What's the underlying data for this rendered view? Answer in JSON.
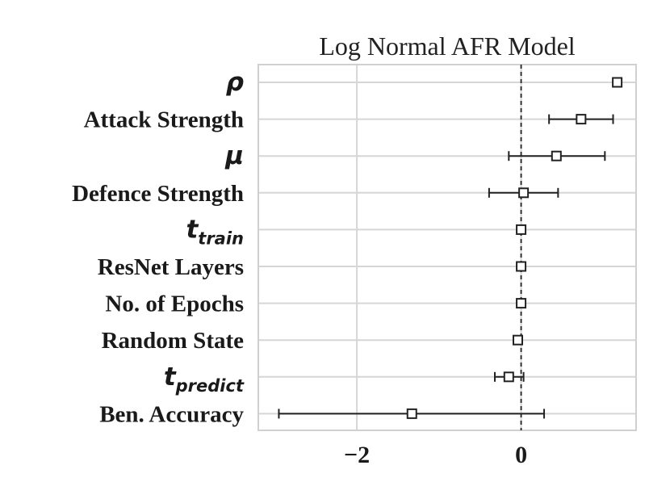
{
  "chart_data": {
    "type": "scatter",
    "title": "Log Normal AFR Model",
    "xlabel": "",
    "ylabel": "",
    "xlim": [
      -3.2,
      1.4
    ],
    "xticks": [
      -2,
      0
    ],
    "xtick_labels": [
      "−2",
      "0"
    ],
    "grid": true,
    "reference_line_x": 0,
    "marker": "open-square",
    "points": [
      {
        "label": "ρ",
        "label_main": "ρ",
        "label_sub": "",
        "math": true,
        "estimate": 1.17,
        "ci_low": null,
        "ci_high": null
      },
      {
        "label": "Attack Strength",
        "label_main": "Attack Strength",
        "label_sub": "",
        "math": false,
        "estimate": 0.73,
        "ci_low": 0.34,
        "ci_high": 1.12
      },
      {
        "label": "μ",
        "label_main": "μ",
        "label_sub": "",
        "math": true,
        "estimate": 0.43,
        "ci_low": -0.15,
        "ci_high": 1.02
      },
      {
        "label": "Defence Strength",
        "label_main": "Defence Strength",
        "label_sub": "",
        "math": false,
        "estimate": 0.03,
        "ci_low": -0.39,
        "ci_high": 0.45
      },
      {
        "label": "t_train",
        "label_main": "t",
        "label_sub": "train",
        "math": true,
        "estimate": 0.0,
        "ci_low": null,
        "ci_high": null
      },
      {
        "label": "ResNet Layers",
        "label_main": "ResNet Layers",
        "label_sub": "",
        "math": false,
        "estimate": 0.0,
        "ci_low": null,
        "ci_high": null
      },
      {
        "label": "No. of Epochs",
        "label_main": "No. of Epochs",
        "label_sub": "",
        "math": false,
        "estimate": 0.0,
        "ci_low": null,
        "ci_high": null
      },
      {
        "label": "Random State",
        "label_main": "Random State",
        "label_sub": "",
        "math": false,
        "estimate": -0.04,
        "ci_low": null,
        "ci_high": null
      },
      {
        "label": "t_predict",
        "label_main": "t",
        "label_sub": "predict",
        "math": true,
        "estimate": -0.15,
        "ci_low": -0.32,
        "ci_high": 0.03
      },
      {
        "label": "Ben. Accuracy",
        "label_main": "Ben. Accuracy",
        "label_sub": "",
        "math": false,
        "estimate": -1.33,
        "ci_low": -2.95,
        "ci_high": 0.28
      }
    ]
  }
}
